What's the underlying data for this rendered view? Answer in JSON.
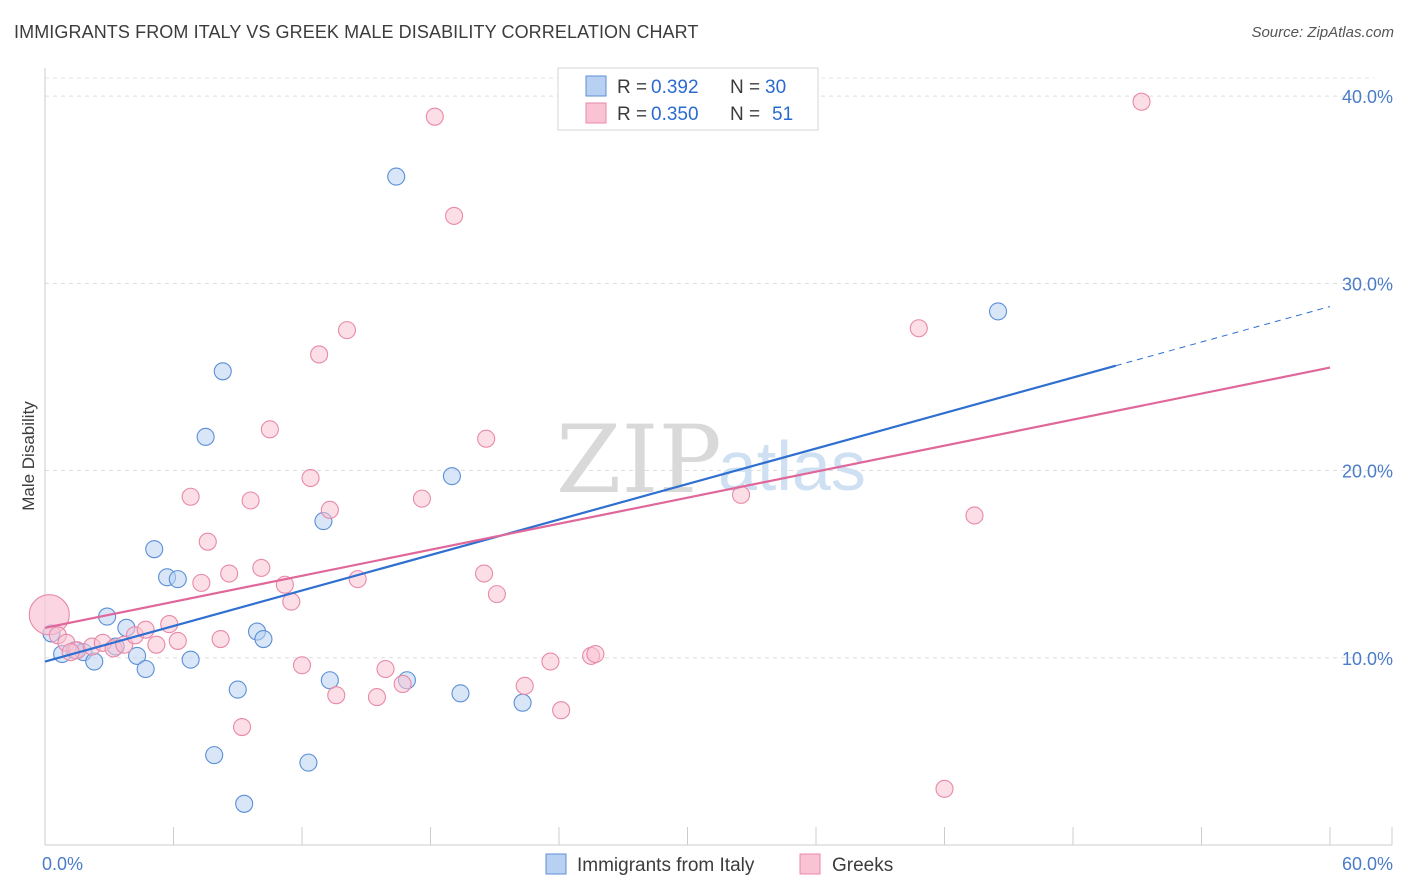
{
  "title": "IMMIGRANTS FROM ITALY VS GREEK MALE DISABILITY CORRELATION CHART",
  "source": "Source: ZipAtlas.com",
  "watermark": {
    "zip": "ZIP",
    "atlas": "atlas"
  },
  "legend": {
    "r_label": "R =",
    "n_label": "N =",
    "series": [
      {
        "r": "0.392",
        "n": "30"
      },
      {
        "r": "0.350",
        "n": "51"
      }
    ]
  },
  "chart_data": {
    "type": "scatter",
    "title": "IMMIGRANTS FROM ITALY VS GREEK MALE DISABILITY CORRELATION CHART",
    "xlabel": "",
    "ylabel": "Male Disability",
    "xlim": [
      0,
      60
    ],
    "ylim": [
      0,
      41.5
    ],
    "x_tick_labels": [
      "0.0%",
      "60.0%"
    ],
    "y_ticks": [
      10,
      20,
      30,
      40
    ],
    "y_tick_labels": [
      "10.0%",
      "20.0%",
      "30.0%",
      "40.0%"
    ],
    "grid": true,
    "legend_position": "top-center",
    "colors": {
      "italy_fill": "#b8d1f3",
      "italy_stroke": "#5b8fd6",
      "italy_line": "#2e6fd0",
      "greeks_fill": "#f9c3d4",
      "greeks_stroke": "#e889a8",
      "greeks_line": "#e0679a",
      "tick_text": "#4a7cc9"
    },
    "series": [
      {
        "name": "Immigrants from Italy",
        "r": 0.392,
        "n": 30,
        "points": [
          [
            0.3,
            11.3
          ],
          [
            0.8,
            10.2
          ],
          [
            1.4,
            10.4
          ],
          [
            1.8,
            10.3
          ],
          [
            2.3,
            9.8
          ],
          [
            2.9,
            12.2
          ],
          [
            3.3,
            10.6
          ],
          [
            3.8,
            11.6
          ],
          [
            4.3,
            10.1
          ],
          [
            4.7,
            9.4
          ],
          [
            5.1,
            15.8
          ],
          [
            5.7,
            14.3
          ],
          [
            6.2,
            14.2
          ],
          [
            6.8,
            9.9
          ],
          [
            7.5,
            21.8
          ],
          [
            7.9,
            4.8
          ],
          [
            8.3,
            25.3
          ],
          [
            9.0,
            8.3
          ],
          [
            9.3,
            2.2
          ],
          [
            9.9,
            11.4
          ],
          [
            10.2,
            11.0
          ],
          [
            12.3,
            4.4
          ],
          [
            13.0,
            17.3
          ],
          [
            13.3,
            8.8
          ],
          [
            16.4,
            35.7
          ],
          [
            16.9,
            8.8
          ],
          [
            19.0,
            19.7
          ],
          [
            19.4,
            8.1
          ],
          [
            22.3,
            7.6
          ],
          [
            44.5,
            28.5
          ]
        ],
        "trend": {
          "x0": 0,
          "y0": 9.8,
          "x1": 50,
          "y1": 25.6,
          "dashed_to_x": 60
        }
      },
      {
        "name": "Greeks",
        "r": 0.35,
        "n": 51,
        "points": [
          [
            0.2,
            12.3
          ],
          [
            0.6,
            11.2
          ],
          [
            1.0,
            10.8
          ],
          [
            1.5,
            10.4
          ],
          [
            2.2,
            10.6
          ],
          [
            2.7,
            10.8
          ],
          [
            3.2,
            10.5
          ],
          [
            3.7,
            10.7
          ],
          [
            4.2,
            11.2
          ],
          [
            4.7,
            11.5
          ],
          [
            5.2,
            10.7
          ],
          [
            5.8,
            11.8
          ],
          [
            6.2,
            10.9
          ],
          [
            6.8,
            18.6
          ],
          [
            7.3,
            14.0
          ],
          [
            7.6,
            16.2
          ],
          [
            8.2,
            11.0
          ],
          [
            8.6,
            14.5
          ],
          [
            9.2,
            6.3
          ],
          [
            9.6,
            18.4
          ],
          [
            10.1,
            14.8
          ],
          [
            10.5,
            22.2
          ],
          [
            11.2,
            13.9
          ],
          [
            11.5,
            13.0
          ],
          [
            12.0,
            9.6
          ],
          [
            12.4,
            19.6
          ],
          [
            12.8,
            26.2
          ],
          [
            13.3,
            17.9
          ],
          [
            13.6,
            8.0
          ],
          [
            14.1,
            27.5
          ],
          [
            14.6,
            14.2
          ],
          [
            15.5,
            7.9
          ],
          [
            15.9,
            9.4
          ],
          [
            16.7,
            8.6
          ],
          [
            17.6,
            18.5
          ],
          [
            18.2,
            38.9
          ],
          [
            19.1,
            33.6
          ],
          [
            20.6,
            21.7
          ],
          [
            20.5,
            14.5
          ],
          [
            21.1,
            13.4
          ],
          [
            22.4,
            8.5
          ],
          [
            23.6,
            9.8
          ],
          [
            24.1,
            7.2
          ],
          [
            25.5,
            10.1
          ],
          [
            25.7,
            10.2
          ],
          [
            32.5,
            18.7
          ],
          [
            40.8,
            27.6
          ],
          [
            42.0,
            3.0
          ],
          [
            43.4,
            17.6
          ],
          [
            51.2,
            39.7
          ],
          [
            1.2,
            10.3
          ]
        ],
        "trend": {
          "x0": 0,
          "y0": 11.6,
          "x1": 60,
          "y1": 25.5
        }
      }
    ]
  },
  "bottom_legend": [
    {
      "label": "Immigrants from Italy"
    },
    {
      "label": "Greeks"
    }
  ]
}
